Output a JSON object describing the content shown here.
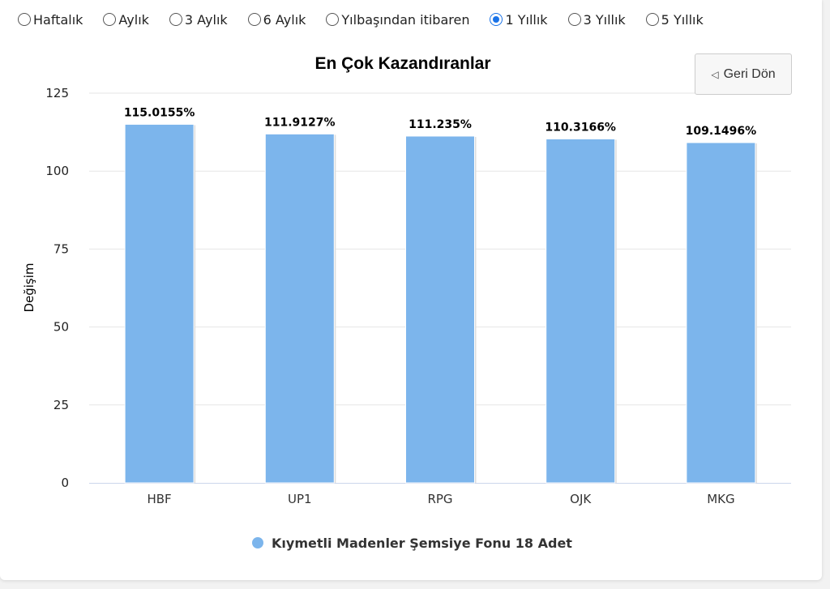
{
  "period_options": [
    {
      "label": "Haftalık",
      "checked": false
    },
    {
      "label": "Aylık",
      "checked": false
    },
    {
      "label": "3 Aylık",
      "checked": false
    },
    {
      "label": "6 Aylık",
      "checked": false
    },
    {
      "label": "Yılbaşından itibaren",
      "checked": false
    },
    {
      "label": "1 Yıllık",
      "checked": true
    },
    {
      "label": "3 Yıllık",
      "checked": false
    },
    {
      "label": "5 Yıllık",
      "checked": false
    }
  ],
  "back_button": {
    "label": "Geri Dön",
    "icon": "back-triangle-icon"
  },
  "colors": {
    "bar": "#7cb5ec",
    "grid": "#e6e6e6",
    "axis": "#ccd6eb",
    "radio_accent": "#1a73e8"
  },
  "chart_data": {
    "type": "bar",
    "title": "En Çok Kazandıranlar",
    "ylabel": "Değişim",
    "xlabel": "",
    "ylim": [
      0,
      125
    ],
    "yticks": [
      0,
      25,
      50,
      75,
      100,
      125
    ],
    "grid": true,
    "legend_position": "bottom",
    "categories": [
      "HBF",
      "UP1",
      "RPG",
      "OJK",
      "MKG"
    ],
    "series": [
      {
        "name": "Kıymetli Madenler Şemsiye Fonu 18 Adet",
        "values": [
          115.0155,
          111.9127,
          111.235,
          110.3166,
          109.1496
        ],
        "labels": [
          "115.0155%",
          "111.9127%",
          "111.235%",
          "110.3166%",
          "109.1496%"
        ]
      }
    ]
  }
}
